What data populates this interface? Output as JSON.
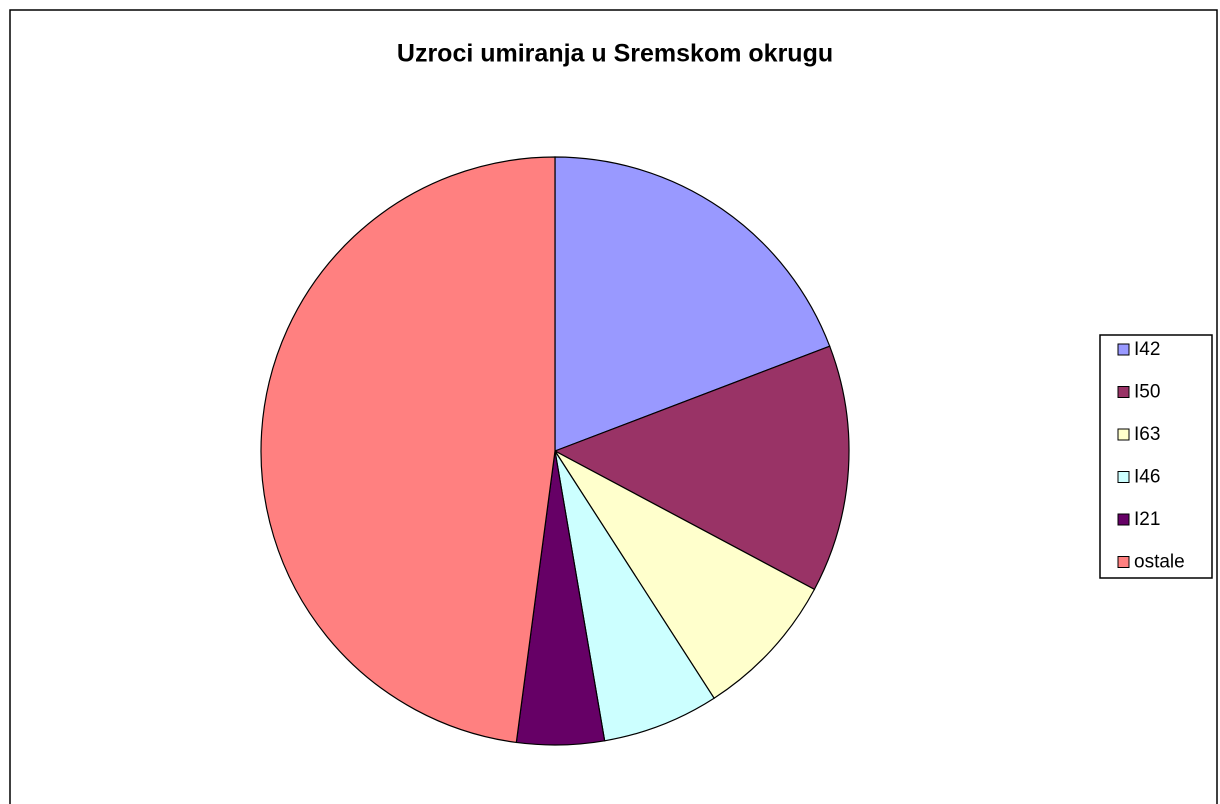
{
  "chart_data": {
    "type": "pie",
    "title": "Uzroci umiranja u Sremskom okrugu",
    "categories": [
      "I42",
      "I50",
      "I63",
      "I46",
      "I21",
      "ostale"
    ],
    "values": [
      19.2,
      13.6,
      8.1,
      6.4,
      4.8,
      47.9
    ],
    "colors": [
      "#9999ff",
      "#993366",
      "#ffffcc",
      "#ccffff",
      "#660066",
      "#ff8080"
    ],
    "legend": "right"
  }
}
